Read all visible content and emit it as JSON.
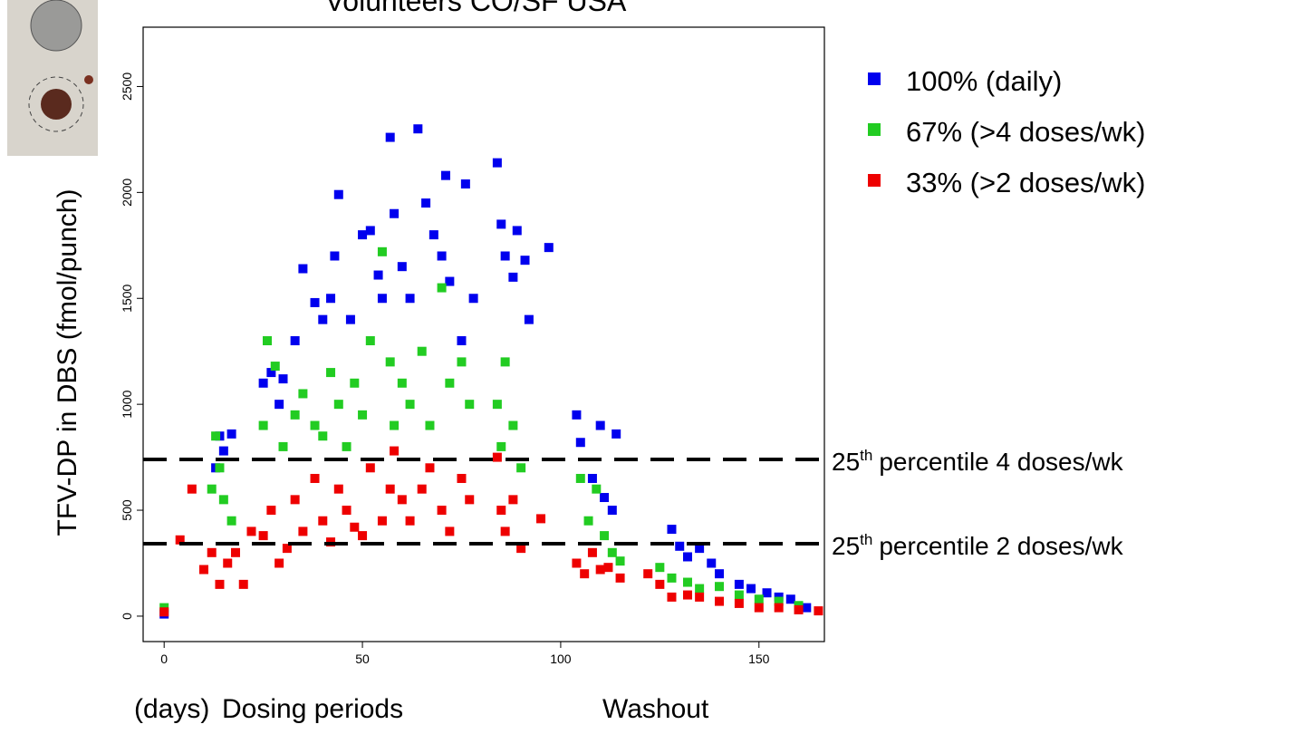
{
  "chart_data": {
    "type": "scatter",
    "title": "Volunteers CO/SF USA",
    "y_label": "TFV-DP in DBS (fmol/punch)",
    "x_label": "(days)",
    "x_period_labels": [
      "Dosing periods",
      "Washout"
    ],
    "xlim": [
      -5.3,
      166.5
    ],
    "ylim": [
      -120,
      2780
    ],
    "xticks": [
      0,
      50,
      100,
      150
    ],
    "yticks": [
      0,
      500,
      1000,
      1500,
      2000,
      2500
    ],
    "reference_lines": [
      {
        "value": 740,
        "number": "25",
        "suffix": "th",
        "text": "percentile 4 doses/wk"
      },
      {
        "value": 342,
        "number": "25",
        "suffix": "th",
        "text": "percentile 2 doses/wk"
      }
    ],
    "series": [
      {
        "name": "100% (daily)",
        "color": "#0000ee",
        "x": [
          0,
          13,
          14,
          15,
          17,
          25,
          27,
          29,
          30,
          33,
          35,
          38,
          40,
          42,
          43,
          44,
          47,
          50,
          52,
          54,
          55,
          57,
          58,
          60,
          62,
          64,
          66,
          68,
          70,
          71,
          72,
          75,
          76,
          78,
          84,
          85,
          86,
          88,
          89,
          91,
          92,
          97,
          104,
          105,
          108,
          110,
          111,
          113,
          114,
          128,
          130,
          132,
          135,
          138,
          140,
          145,
          148,
          152,
          155,
          158,
          162
        ],
        "values": [
          10,
          700,
          850,
          780,
          860,
          1100,
          1150,
          1000,
          1120,
          1300,
          1640,
          1480,
          1400,
          1500,
          1700,
          1990,
          1400,
          1800,
          1820,
          1610,
          1500,
          2260,
          1900,
          1650,
          1500,
          2300,
          1950,
          1800,
          1700,
          2080,
          1580,
          1300,
          2040,
          1500,
          2140,
          1850,
          1700,
          1600,
          1820,
          1680,
          1400,
          1740,
          950,
          820,
          650,
          900,
          560,
          500,
          860,
          410,
          330,
          280,
          320,
          250,
          200,
          150,
          130,
          110,
          90,
          80,
          40
        ]
      },
      {
        "name": "67% (>4 doses/wk)",
        "color": "#22cc22",
        "x": [
          0,
          12,
          13,
          14,
          15,
          17,
          25,
          26,
          28,
          30,
          33,
          35,
          38,
          40,
          42,
          44,
          46,
          48,
          50,
          52,
          55,
          57,
          58,
          60,
          62,
          65,
          67,
          70,
          72,
          75,
          77,
          84,
          85,
          86,
          88,
          90,
          105,
          107,
          109,
          111,
          113,
          115,
          125,
          128,
          132,
          135,
          140,
          145,
          150,
          155,
          160
        ],
        "values": [
          40,
          600,
          850,
          700,
          550,
          450,
          900,
          1300,
          1180,
          800,
          950,
          1050,
          900,
          850,
          1150,
          1000,
          800,
          1100,
          950,
          1300,
          1720,
          1200,
          900,
          1100,
          1000,
          1250,
          900,
          1550,
          1100,
          1200,
          1000,
          1000,
          800,
          1200,
          900,
          700,
          650,
          450,
          600,
          380,
          300,
          260,
          230,
          180,
          160,
          130,
          140,
          100,
          80,
          70,
          50
        ]
      },
      {
        "name": "33% (>2 doses/wk)",
        "color": "#ee0000",
        "x": [
          0,
          4,
          7,
          10,
          12,
          14,
          16,
          18,
          20,
          22,
          25,
          27,
          29,
          31,
          33,
          35,
          38,
          40,
          42,
          44,
          46,
          48,
          50,
          52,
          55,
          57,
          58,
          60,
          62,
          65,
          67,
          70,
          72,
          75,
          77,
          84,
          85,
          86,
          88,
          90,
          95,
          104,
          106,
          108,
          110,
          112,
          115,
          122,
          125,
          128,
          132,
          135,
          140,
          145,
          150,
          155,
          160,
          165
        ],
        "values": [
          20,
          360,
          600,
          220,
          300,
          150,
          250,
          300,
          150,
          400,
          380,
          500,
          250,
          320,
          550,
          400,
          650,
          450,
          350,
          600,
          500,
          420,
          380,
          700,
          450,
          600,
          780,
          550,
          450,
          600,
          700,
          500,
          400,
          650,
          550,
          750,
          500,
          400,
          550,
          320,
          460,
          250,
          200,
          300,
          220,
          230,
          180,
          200,
          150,
          90,
          100,
          90,
          70,
          60,
          40,
          40,
          30,
          25
        ]
      }
    ]
  }
}
